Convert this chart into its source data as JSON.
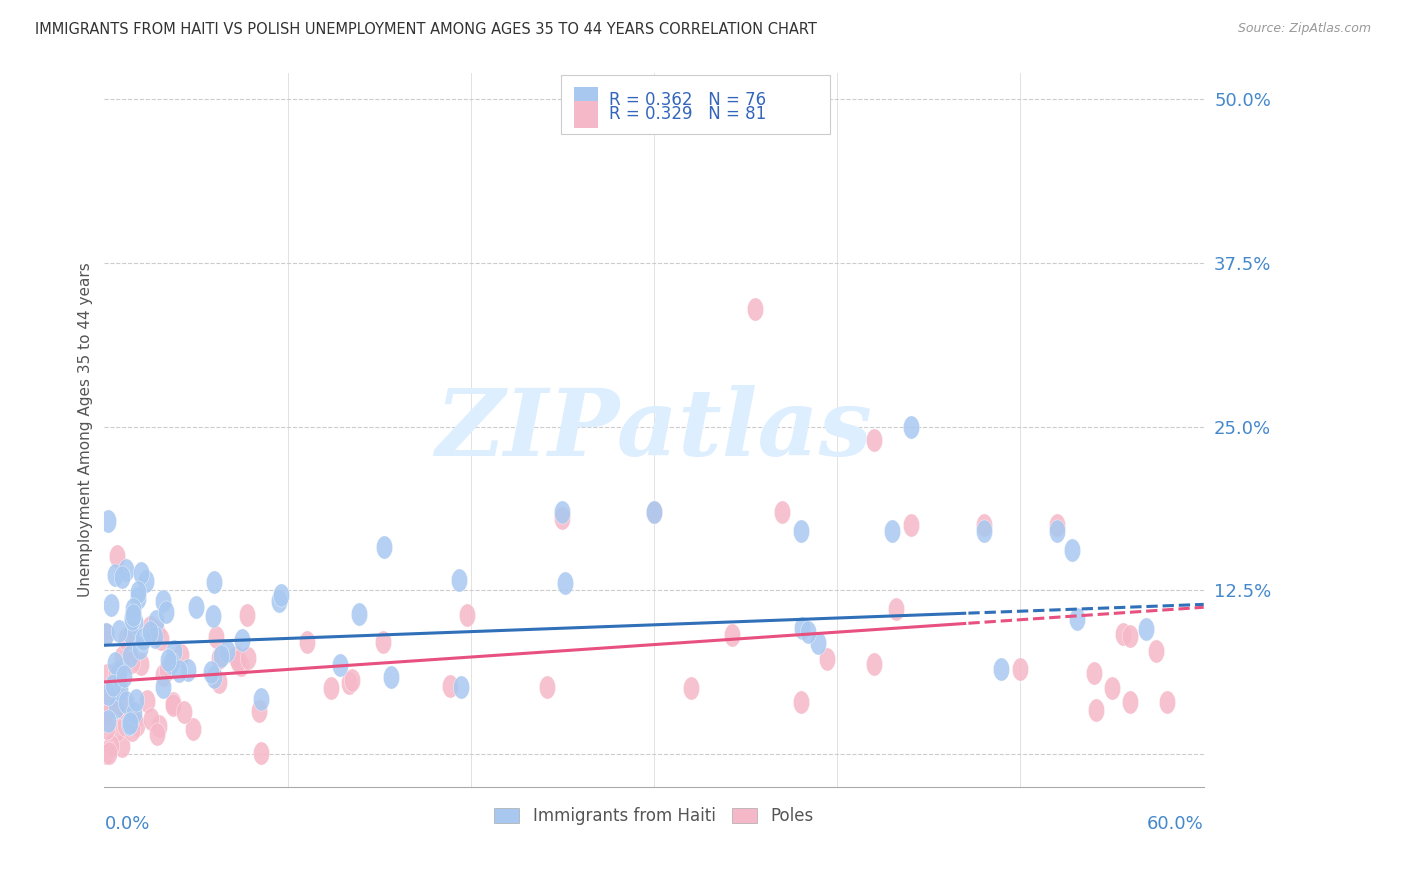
{
  "title": "IMMIGRANTS FROM HAITI VS POLISH UNEMPLOYMENT AMONG AGES 35 TO 44 YEARS CORRELATION CHART",
  "source": "Source: ZipAtlas.com",
  "ylabel": "Unemployment Among Ages 35 to 44 years",
  "series1_name": "Immigrants from Haiti",
  "series2_name": "Poles",
  "blue_color": "#a8c8f0",
  "pink_color": "#f5b8c8",
  "trend1_color": "#3070b8",
  "trend2_color": "#e85080",
  "watermark_color": "#ddeeff",
  "grid_color": "#cccccc",
  "title_color": "#333333",
  "right_axis_color": "#4488cc",
  "legend_text_color": "#3366bb",
  "legend_n_color": "#00aacc",
  "source_color": "#999999",
  "ylabel_color": "#555555",
  "bottom_label_color": "#4488cc",
  "legend1_r": "0.362",
  "legend1_n": "76",
  "legend2_r": "0.329",
  "legend2_n": "81",
  "xlim": [
    0.0,
    0.6
  ],
  "ylim": [
    -0.025,
    0.52
  ],
  "yticks": [
    0.0,
    0.125,
    0.25,
    0.375,
    0.5
  ],
  "yticklabels": [
    "",
    "12.5%",
    "25.0%",
    "37.5%",
    "50.0%"
  ],
  "haiti_trend_intercept": 0.083,
  "haiti_trend_slope": 0.052,
  "poles_trend_intercept": 0.055,
  "poles_trend_slope": 0.095,
  "trend_cutoff": 0.47
}
